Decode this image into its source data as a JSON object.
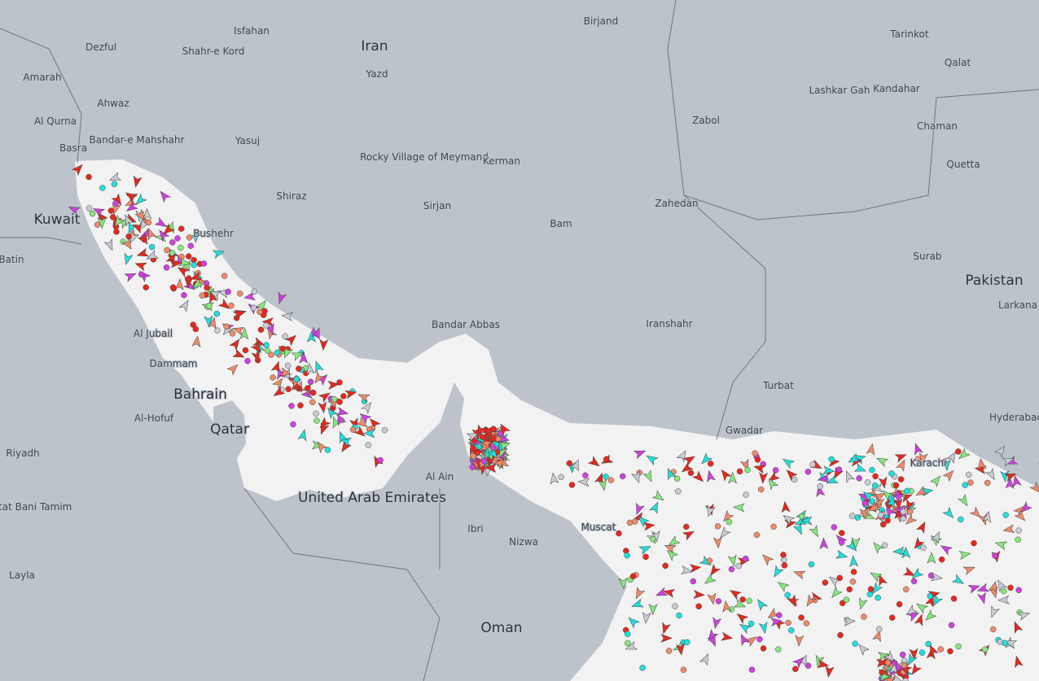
{
  "countries": [
    "Iran",
    "Pakistan",
    "Oman",
    "United Arab Emirates",
    "Qatar",
    "Bahrain",
    "Kuwait"
  ],
  "places": [
    "Isfahan",
    "Birjand",
    "Tarinkot",
    "Dezful",
    "Shahr-e Kord",
    "Qalat",
    "Amarah",
    "Yazd",
    "Lashkar Gah",
    "Kandahar",
    "Ahwaz",
    "Al Qurna",
    "Bandar-e Mahshahr",
    "Zabol",
    "Chaman",
    "Yasuj",
    "Basra",
    "Rocky Village of Meymand",
    "Kerman",
    "Quetta",
    "Shiraz",
    "Zahedan",
    "Sirjan",
    "Bushehr",
    "Bam",
    "Batin",
    "Surab",
    "Larkana",
    "Bandar Abbas",
    "Iranshahr",
    "Al Jubail",
    "Dammam",
    "Turbat",
    "Al-Hofuf",
    "Gwadar",
    "Hyderabad",
    "Riyadh",
    "Al Ain",
    "Karachi",
    "Hotat Bani Tamim",
    "Ibri",
    "Nizwa",
    "Muscat",
    "Layla"
  ]
}
